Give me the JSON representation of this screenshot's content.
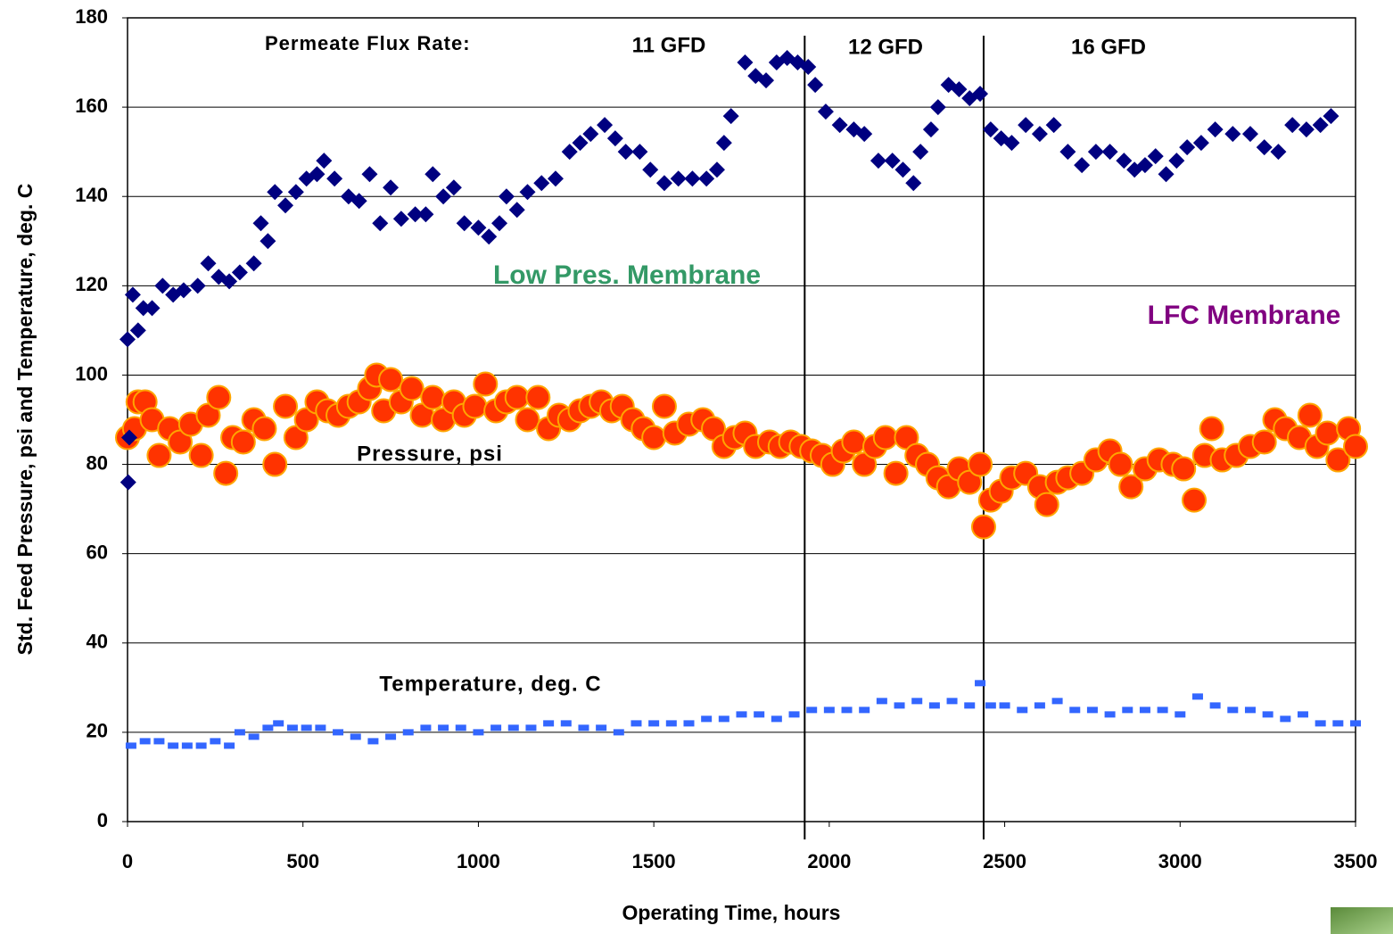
{
  "chart_data": {
    "type": "scatter",
    "xlabel": "Operating Time, hours",
    "ylabel": "Std. Feed Pressure, psi and Temperature, deg. C",
    "xlim": [
      0,
      3500
    ],
    "xticks": [
      0,
      500,
      1000,
      1500,
      2000,
      2500,
      3000,
      3500
    ],
    "ylim": [
      0,
      180
    ],
    "yticks": [
      0,
      20,
      40,
      60,
      80,
      100,
      120,
      140,
      160,
      180
    ],
    "grid": true,
    "vlines": [
      1930,
      2440
    ],
    "annotations": [
      {
        "text": "Permeate Flux Rate:",
        "color": "#000000"
      },
      {
        "text": "11 GFD",
        "color": "#000000"
      },
      {
        "text": "12 GFD",
        "color": "#000000"
      },
      {
        "text": "16 GFD",
        "color": "#000000"
      },
      {
        "text": "Low Pres. Membrane",
        "color": "#339966"
      },
      {
        "text": "LFC Membrane",
        "color": "#800080"
      }
    ],
    "series": [
      {
        "name": "Temperature, deg. C",
        "color": "#3366ff",
        "marker": "square",
        "x": [
          10,
          50,
          90,
          130,
          170,
          210,
          250,
          290,
          320,
          360,
          400,
          430,
          470,
          510,
          550,
          600,
          650,
          700,
          750,
          800,
          850,
          900,
          950,
          1000,
          1050,
          1100,
          1150,
          1200,
          1250,
          1300,
          1350,
          1400,
          1450,
          1500,
          1550,
          1600,
          1650,
          1700,
          1750,
          1800,
          1850,
          1900,
          1950,
          2000,
          2050,
          2100,
          2150,
          2200,
          2250,
          2300,
          2350,
          2400,
          2430,
          2460,
          2500,
          2550,
          2600,
          2650,
          2700,
          2750,
          2800,
          2850,
          2900,
          2950,
          3000,
          3050,
          3100,
          3150,
          3200,
          3250,
          3300,
          3350,
          3400,
          3450,
          3500
        ],
        "values": [
          17,
          18,
          18,
          17,
          17,
          17,
          18,
          17,
          20,
          19,
          21,
          22,
          21,
          21,
          21,
          20,
          19,
          18,
          19,
          20,
          21,
          21,
          21,
          20,
          21,
          21,
          21,
          22,
          22,
          21,
          21,
          20,
          22,
          22,
          22,
          22,
          23,
          23,
          24,
          24,
          23,
          24,
          25,
          25,
          25,
          25,
          27,
          26,
          27,
          26,
          27,
          26,
          31,
          26,
          26,
          25,
          26,
          27,
          25,
          25,
          24,
          25,
          25,
          25,
          24,
          28,
          26,
          25,
          25,
          24,
          23,
          24,
          22,
          22,
          22
        ]
      },
      {
        "name": "Pressure, psi",
        "color": "#ff3300",
        "marker": "circle",
        "x": [
          0,
          20,
          30,
          50,
          70,
          90,
          120,
          150,
          180,
          210,
          230,
          260,
          280,
          300,
          330,
          360,
          390,
          420,
          450,
          480,
          510,
          540,
          570,
          600,
          630,
          660,
          690,
          710,
          730,
          750,
          780,
          810,
          840,
          870,
          900,
          930,
          960,
          990,
          1020,
          1050,
          1080,
          1110,
          1140,
          1170,
          1200,
          1230,
          1260,
          1290,
          1320,
          1350,
          1380,
          1410,
          1440,
          1470,
          1500,
          1530,
          1560,
          1600,
          1640,
          1670,
          1700,
          1730,
          1760,
          1790,
          1830,
          1860,
          1890,
          1920,
          1950,
          1980,
          2010,
          2040,
          2070,
          2100,
          2130,
          2160,
          2190,
          2220,
          2250,
          2280,
          2310,
          2340,
          2370,
          2400,
          2430,
          2440,
          2460,
          2490,
          2520,
          2560,
          2600,
          2620,
          2650,
          2680,
          2720,
          2760,
          2800,
          2830,
          2860,
          2900,
          2940,
          2980,
          3010,
          3040,
          3070,
          3090,
          3120,
          3160,
          3200,
          3240,
          3270,
          3300,
          3340,
          3370,
          3390,
          3420,
          3450,
          3480,
          3500
        ],
        "values": [
          86,
          88,
          94,
          94,
          90,
          82,
          88,
          85,
          89,
          82,
          91,
          95,
          78,
          86,
          85,
          90,
          88,
          80,
          93,
          86,
          90,
          94,
          92,
          91,
          93,
          94,
          97,
          100,
          92,
          99,
          94,
          97,
          91,
          95,
          90,
          94,
          91,
          93,
          98,
          92,
          94,
          95,
          90,
          95,
          88,
          91,
          90,
          92,
          93,
          94,
          92,
          93,
          90,
          88,
          86,
          93,
          87,
          89,
          90,
          88,
          84,
          86,
          87,
          84,
          85,
          84,
          85,
          84,
          83,
          82,
          80,
          83,
          85,
          80,
          84,
          86,
          78,
          86,
          82,
          80,
          77,
          75,
          79,
          76,
          80,
          66,
          72,
          74,
          77,
          78,
          75,
          71,
          76,
          77,
          78,
          81,
          83,
          80,
          75,
          79,
          81,
          80,
          79,
          72,
          82,
          88,
          81,
          82,
          84,
          85,
          90,
          88,
          86,
          91,
          84,
          87,
          81,
          88,
          84
        ]
      },
      {
        "color": "#000080",
        "marker": "diamond",
        "x": [
          0,
          5,
          2,
          15,
          30,
          45,
          70,
          100,
          130,
          160,
          200,
          230,
          260,
          290,
          320,
          360,
          380,
          400,
          420,
          450,
          480,
          510,
          540,
          560,
          590,
          630,
          660,
          690,
          720,
          750,
          780,
          820,
          850,
          870,
          900,
          930,
          960,
          1000,
          1030,
          1060,
          1080,
          1110,
          1140,
          1180,
          1220,
          1260,
          1290,
          1320,
          1360,
          1390,
          1420,
          1460,
          1490,
          1530,
          1570,
          1610,
          1650,
          1680,
          1700,
          1720,
          1760,
          1790,
          1820,
          1850,
          1880,
          1910,
          1940,
          1960,
          1990,
          2030,
          2070,
          2100,
          2140,
          2180,
          2210,
          2240,
          2260,
          2290,
          2310,
          2340,
          2370,
          2400,
          2430,
          2460,
          2490,
          2520,
          2560,
          2600,
          2640,
          2680,
          2720,
          2760,
          2800,
          2840,
          2870,
          2900,
          2930,
          2960,
          2990,
          3020,
          3060,
          3100,
          3150,
          3200,
          3240,
          3280,
          3320,
          3360,
          3400,
          3430
        ],
        "values": [
          108,
          86,
          76,
          118,
          110,
          115,
          115,
          120,
          118,
          119,
          120,
          125,
          122,
          121,
          123,
          125,
          134,
          130,
          141,
          138,
          141,
          144,
          145,
          148,
          144,
          140,
          139,
          145,
          134,
          142,
          135,
          136,
          136,
          145,
          140,
          142,
          134,
          133,
          131,
          134,
          140,
          137,
          141,
          143,
          144,
          150,
          152,
          154,
          156,
          153,
          150,
          150,
          146,
          143,
          144,
          144,
          144,
          146,
          152,
          158,
          170,
          167,
          166,
          170,
          171,
          170,
          169,
          165,
          159,
          156,
          155,
          154,
          148,
          148,
          146,
          143,
          150,
          155,
          160,
          165,
          164,
          162,
          163,
          155,
          153,
          152,
          156,
          154,
          156,
          150,
          147,
          150,
          150,
          148,
          146,
          147,
          149,
          145,
          148,
          151,
          152,
          155,
          154,
          154,
          151,
          150,
          156,
          155,
          156,
          158
        ]
      }
    ]
  }
}
